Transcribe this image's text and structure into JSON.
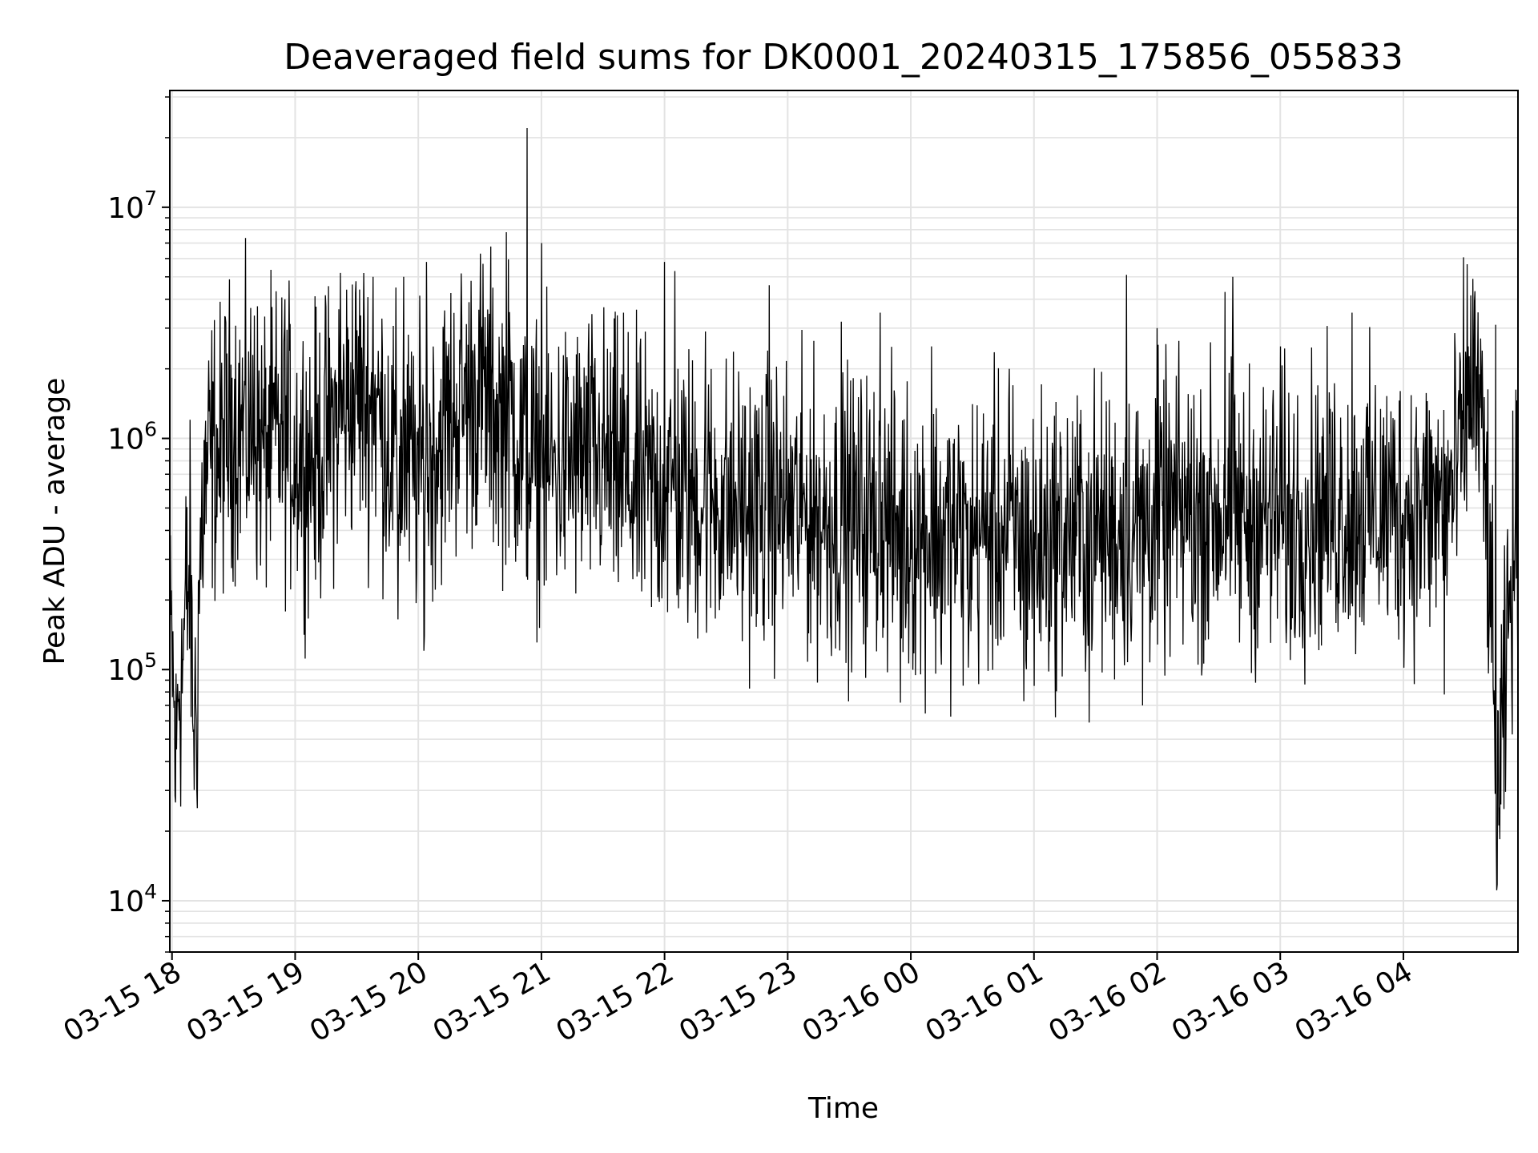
{
  "chart_data": {
    "type": "line",
    "title": "Deaveraged field sums for DK0001_20240315_175856_055833",
    "xlabel": "Time",
    "ylabel": "Peak ADU - average",
    "yscale": "log",
    "ylim": [
      6000,
      32000000
    ],
    "xlim": [
      "2024-03-15 17:58:56",
      "2024-03-16 04:55:50"
    ],
    "grid": true,
    "line_color": "#000000",
    "xticks": [
      {
        "t": "2024-03-15 18:00",
        "label": "03-15 18"
      },
      {
        "t": "2024-03-15 19:00",
        "label": "03-15 19"
      },
      {
        "t": "2024-03-15 20:00",
        "label": "03-15 20"
      },
      {
        "t": "2024-03-15 21:00",
        "label": "03-15 21"
      },
      {
        "t": "2024-03-15 22:00",
        "label": "03-15 22"
      },
      {
        "t": "2024-03-15 23:00",
        "label": "03-15 23"
      },
      {
        "t": "2024-03-16 00:00",
        "label": "03-16 00"
      },
      {
        "t": "2024-03-16 01:00",
        "label": "03-16 01"
      },
      {
        "t": "2024-03-16 02:00",
        "label": "03-16 02"
      },
      {
        "t": "2024-03-16 03:00",
        "label": "03-16 03"
      },
      {
        "t": "2024-03-16 04:00",
        "label": "03-16 04"
      }
    ],
    "yticks": [
      {
        "value": 10000,
        "base": "10",
        "exp": "4"
      },
      {
        "value": 100000,
        "base": "10",
        "exp": "5"
      },
      {
        "value": 1000000,
        "base": "10",
        "exp": "6"
      },
      {
        "value": 10000000,
        "base": "10",
        "exp": "7"
      }
    ],
    "series": [
      {
        "x": [
          "2024-03-15 17:59",
          "2024-03-15 18:00",
          "2024-03-15 18:01",
          "2024-03-15 18:02",
          "2024-03-15 18:03",
          "2024-03-15 18:05",
          "2024-03-15 18:07",
          "2024-03-15 18:09",
          "2024-03-15 18:10",
          "2024-03-15 18:12",
          "2024-03-15 18:13",
          "2024-03-15 18:15",
          "2024-03-15 18:17",
          "2024-03-15 18:20",
          "2024-03-15 18:23",
          "2024-03-15 18:26",
          "2024-03-15 18:30",
          "2024-03-15 18:35",
          "2024-03-15 18:40",
          "2024-03-15 18:45",
          "2024-03-15 18:50",
          "2024-03-15 18:55",
          "2024-03-15 19:00",
          "2024-03-15 19:10",
          "2024-03-15 19:20",
          "2024-03-15 19:30",
          "2024-03-15 19:40",
          "2024-03-15 19:50",
          "2024-03-15 20:00",
          "2024-03-15 20:10",
          "2024-03-15 20:20",
          "2024-03-15 20:30",
          "2024-03-15 20:40",
          "2024-03-15 20:45",
          "2024-03-15 20:50",
          "2024-03-15 20:55",
          "2024-03-15 21:00",
          "2024-03-15 21:15",
          "2024-03-15 21:30",
          "2024-03-15 21:45",
          "2024-03-15 22:00",
          "2024-03-15 22:20",
          "2024-03-15 22:40",
          "2024-03-15 23:00",
          "2024-03-15 23:20",
          "2024-03-15 23:40",
          "2024-03-16 00:00",
          "2024-03-16 00:20",
          "2024-03-16 00:40",
          "2024-03-16 01:00",
          "2024-03-16 01:20",
          "2024-03-16 01:40",
          "2024-03-16 02:00",
          "2024-03-16 02:20",
          "2024-03-16 02:40",
          "2024-03-16 03:00",
          "2024-03-16 03:20",
          "2024-03-16 03:40",
          "2024-03-16 04:00",
          "2024-03-16 04:15",
          "2024-03-16 04:25",
          "2024-03-16 04:30",
          "2024-03-16 04:33",
          "2024-03-16 04:36",
          "2024-03-16 04:39",
          "2024-03-16 04:42",
          "2024-03-16 04:45",
          "2024-03-16 04:47",
          "2024-03-16 04:49",
          "2024-03-16 04:51",
          "2024-03-16 04:53",
          "2024-03-16 04:55"
        ],
        "y": [
          110000,
          130000,
          60000,
          35000,
          90000,
          100000,
          200000,
          250000,
          70000,
          60000,
          200000,
          500000,
          700000,
          900000,
          800000,
          1000000,
          1200000,
          1100000,
          1000000,
          900000,
          1000000,
          1000000,
          900000,
          800000,
          1200000,
          1600000,
          1300000,
          800000,
          700000,
          1000000,
          1400000,
          1600000,
          1200000,
          1300000,
          900000,
          800000,
          700000,
          800000,
          800000,
          600000,
          600000,
          550000,
          500000,
          500000,
          450000,
          450000,
          400000,
          380000,
          400000,
          350000,
          400000,
          400000,
          450000,
          500000,
          450000,
          450000,
          500000,
          500000,
          500000,
          500000,
          600000,
          1200000,
          2000000,
          1500000,
          800000,
          300000,
          30000,
          30000,
          60000,
          150000,
          250000,
          380000
        ]
      }
    ],
    "spikes": [
      {
        "t": "2024-03-15 20:53",
        "y": 22000000
      },
      {
        "t": "2024-03-15 21:00",
        "y": 7000000
      },
      {
        "t": "2024-03-15 20:43",
        "y": 7800000
      },
      {
        "t": "2024-03-15 20:04",
        "y": 5800000
      },
      {
        "t": "2024-03-15 22:00",
        "y": 5800000
      },
      {
        "t": "2024-03-15 22:05",
        "y": 5300000
      },
      {
        "t": "2024-03-15 19:22",
        "y": 5200000
      },
      {
        "t": "2024-03-16 01:45",
        "y": 5100000
      },
      {
        "t": "2024-03-16 02:37",
        "y": 5000000
      },
      {
        "t": "2024-03-15 19:53",
        "y": 5000000
      },
      {
        "t": "2024-03-15 19:38",
        "y": 5000000
      },
      {
        "t": "2024-03-15 22:51",
        "y": 4600000
      },
      {
        "t": "2024-03-16 02:33",
        "y": 4300000
      },
      {
        "t": "2024-03-15 18:55",
        "y": 4000000
      },
      {
        "t": "2024-03-15 21:40",
        "y": 3500000
      },
      {
        "t": "2024-03-15 23:45",
        "y": 3500000
      },
      {
        "t": "2024-03-16 03:35",
        "y": 3500000
      },
      {
        "t": "2024-03-15 18:40",
        "y": 3400000
      },
      {
        "t": "2024-03-15 23:26",
        "y": 3200000
      },
      {
        "t": "2024-03-16 04:45",
        "y": 3100000
      },
      {
        "t": "2024-03-16 02:00",
        "y": 3000000
      },
      {
        "t": "2024-03-15 22:20",
        "y": 2900000
      },
      {
        "t": "2024-03-16 00:10",
        "y": 2500000
      },
      {
        "t": "2024-03-16 00:48",
        "y": 2000000
      },
      {
        "t": "2024-03-16 03:00",
        "y": 2500000
      },
      {
        "t": "2024-03-15 23:55",
        "y": 72000
      },
      {
        "t": "2024-03-16 00:55",
        "y": 73000
      },
      {
        "t": "2024-03-16 01:27",
        "y": 59000
      },
      {
        "t": "2024-03-16 01:53",
        "y": 70000
      },
      {
        "t": "2024-03-16 04:20",
        "y": 78000
      },
      {
        "t": "2024-03-15 19:50",
        "y": 165000
      },
      {
        "t": "2024-03-15 20:03",
        "y": 140000
      },
      {
        "t": "2024-03-15 22:48",
        "y": 155000
      },
      {
        "t": "2024-03-16 00:15",
        "y": 105000
      },
      {
        "t": "2024-03-16 00:28",
        "y": 102000
      },
      {
        "t": "2024-03-16 01:00",
        "y": 85000
      },
      {
        "t": "2024-03-16 02:20",
        "y": 105000
      },
      {
        "t": "2024-03-16 03:05",
        "y": 110000
      }
    ]
  }
}
